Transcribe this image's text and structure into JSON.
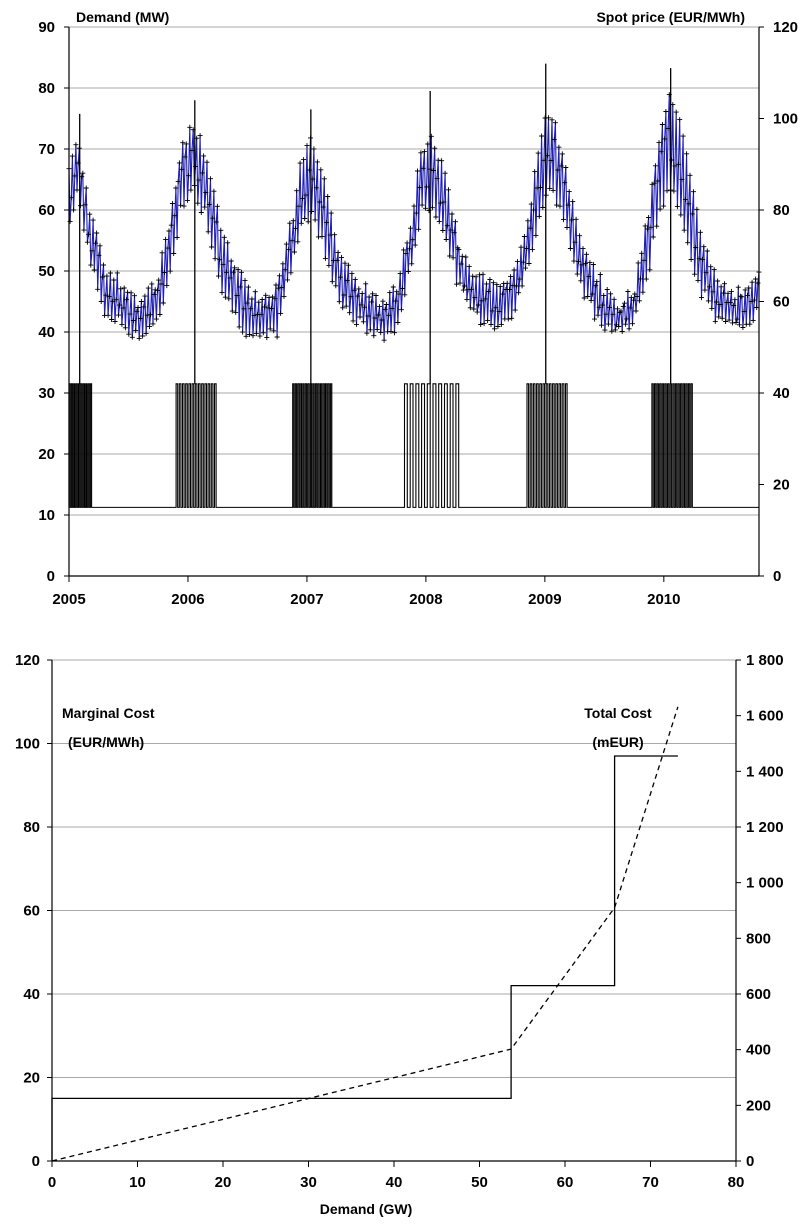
{
  "chart_data": [
    {
      "type": "line",
      "ylabel_left": "Demand (MW)",
      "ylabel_right": "Spot price (EUR/MWh)",
      "x_ticks": [
        "2005",
        "2006",
        "2007",
        "2008",
        "2009",
        "2010"
      ],
      "y_ticks_left": [
        "0",
        "10",
        "20",
        "30",
        "40",
        "50",
        "60",
        "70",
        "80",
        "90"
      ],
      "y_ticks_right": [
        "0",
        "20",
        "40",
        "60",
        "80",
        "100",
        "120"
      ],
      "ylim_left": [
        0,
        90
      ],
      "ylim_right": [
        0,
        120
      ],
      "xlim": [
        2005,
        2010.8
      ],
      "grid": true,
      "series": [
        {
          "role": "demand",
          "axis": "left",
          "color": "#1f1fb4",
          "marker_color": "#000000",
          "seasonal_profile": {
            "x": [
              2005.0,
              2005.08,
              2005.18,
              2005.3,
              2005.45,
              2005.6,
              2005.75,
              2005.88,
              2005.95,
              2006.05,
              2006.15,
              2006.3,
              2006.45,
              2006.6,
              2006.75,
              2006.88,
              2006.95,
              2007.05,
              2007.15,
              2007.3,
              2007.45,
              2007.6,
              2007.75,
              2007.88,
              2007.95,
              2008.05,
              2008.15,
              2008.3,
              2008.45,
              2008.6,
              2008.75,
              2008.88,
              2008.95,
              2009.05,
              2009.15,
              2009.3,
              2009.45,
              2009.6,
              2009.75,
              2009.88,
              2009.95,
              2010.05,
              2010.15,
              2010.3,
              2010.45,
              2010.6,
              2010.78
            ],
            "upper": [
              68,
              72,
              60,
              52,
              49,
              46,
              50,
              62,
              72,
              75,
              70,
              56,
              50,
              46,
              49,
              60,
              70,
              73,
              65,
              52,
              49,
              46,
              48,
              60,
              70,
              73,
              67,
              54,
              50,
              48,
              51,
              62,
              72,
              78,
              70,
              55,
              50,
              45,
              48,
              62,
              72,
              81,
              74,
              58,
              50,
              47,
              51
            ],
            "lower": [
              56,
              62,
              50,
              42,
              40,
              38,
              40,
              52,
              60,
              62,
              58,
              45,
              40,
              37,
              39,
              50,
              57,
              58,
              52,
              43,
              40,
              38,
              39,
              50,
              58,
              60,
              55,
              45,
              41,
              40,
              42,
              52,
              58,
              62,
              58,
              46,
              41,
              39,
              40,
              50,
              58,
              62,
              58,
              46,
              41,
              39,
              42
            ]
          }
        },
        {
          "role": "spot-price",
          "axis": "right",
          "color": "#000000",
          "base_level": 15,
          "winter_level": 42,
          "spike_level_by_winter": [
            101,
            104,
            102,
            106,
            112,
            111
          ],
          "winter_spans": [
            [
              2005.0,
              2005.2
            ],
            [
              2005.9,
              2006.25
            ],
            [
              2006.88,
              2007.22
            ],
            [
              2007.82,
              2008.3
            ],
            [
              2008.85,
              2009.2
            ],
            [
              2009.9,
              2010.25
            ]
          ]
        }
      ]
    },
    {
      "type": "line",
      "title_left_line1": "Marginal Cost",
      "title_left_line2": "(EUR/MWh)",
      "title_right_line1": "Total Cost",
      "title_right_line2": "(mEUR)",
      "xlabel": "Demand (GW)",
      "x_ticks": [
        "0",
        "10",
        "20",
        "30",
        "40",
        "50",
        "60",
        "70",
        "80"
      ],
      "y_ticks_left": [
        "0",
        "20",
        "40",
        "60",
        "80",
        "100",
        "120"
      ],
      "y_ticks_right": [
        "0",
        "200",
        "400",
        "600",
        "800",
        "1 000",
        "1 200",
        "1 400",
        "1 600",
        "1 800"
      ],
      "xlim": [
        0,
        80
      ],
      "ylim_left": [
        0,
        120
      ],
      "ylim_right": [
        0,
        1800
      ],
      "grid": true,
      "series": [
        {
          "role": "marginal-cost",
          "axis": "left",
          "style": "step-solid",
          "color": "#000000",
          "x": [
            0,
            0,
            53.7,
            53.7,
            65.8,
            65.8,
            73.2
          ],
          "y": [
            0,
            15,
            15,
            42,
            42,
            97,
            97
          ]
        },
        {
          "role": "total-cost",
          "axis": "right",
          "style": "dashed",
          "color": "#000000",
          "x": [
            0,
            53.7,
            65.8,
            73.2
          ],
          "y": [
            0,
            402,
            910,
            1632
          ]
        }
      ]
    }
  ]
}
